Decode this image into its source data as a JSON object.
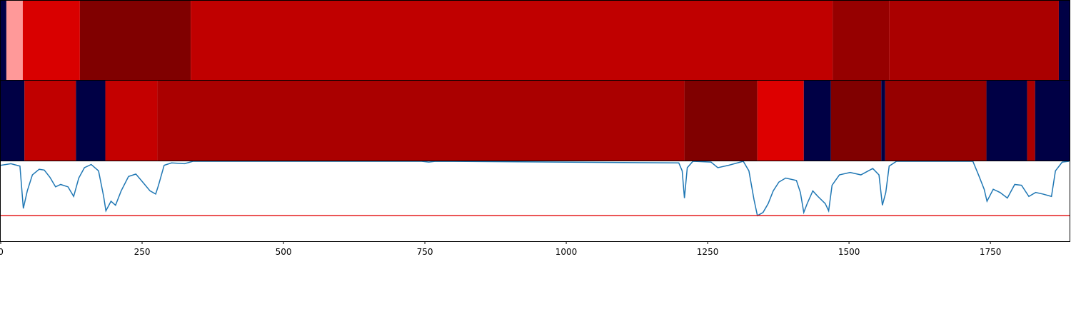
{
  "chart_data": [
    {
      "type": "strip",
      "xlim": [
        0,
        1890
      ],
      "edges": [
        0,
        10,
        39,
        140,
        336,
        1471,
        1571,
        1871,
        1890
      ],
      "colors": [
        "#000045",
        "#ff9999",
        "#d90000",
        "#800000",
        "#c00000",
        "#960000",
        "#aa0000",
        "#000045"
      ]
    },
    {
      "type": "strip",
      "xlim": [
        0,
        1890
      ],
      "edges": [
        0,
        42,
        133,
        185,
        277,
        1209,
        1338,
        1420,
        1468,
        1557,
        1564,
        1743,
        1815,
        1829,
        1890
      ],
      "colors": [
        "#000045",
        "#c00000",
        "#000045",
        "#c40000",
        "#aa0000",
        "#800000",
        "#dd0000",
        "#000045",
        "#800000",
        "#000045",
        "#960000",
        "#000045",
        "#aa0000",
        "#000045"
      ]
    },
    {
      "type": "line",
      "xlim": [
        0,
        1890
      ],
      "ylim": [
        0,
        1
      ],
      "xticks": [
        0,
        250,
        500,
        750,
        1000,
        1250,
        1500,
        1750
      ],
      "hline": 0.32,
      "hline_color": "#e41a1c",
      "series": [
        {
          "color": "#1f77b4",
          "x": [
            0,
            18,
            34,
            40,
            47,
            56,
            68,
            77,
            87,
            97,
            106,
            119,
            129,
            138,
            148,
            160,
            173,
            182,
            186,
            195,
            203,
            213,
            226,
            239,
            251,
            264,
            274,
            279,
            289,
            302,
            325,
            340,
            744,
            757,
            769,
            1199,
            1205,
            1209,
            1214,
            1224,
            1256,
            1268,
            1287,
            1313,
            1323,
            1332,
            1338,
            1348,
            1357,
            1366,
            1376,
            1388,
            1407,
            1414,
            1420,
            1426,
            1436,
            1445,
            1458,
            1464,
            1470,
            1483,
            1502,
            1521,
            1542,
            1553,
            1559,
            1565,
            1571,
            1584,
            1719,
            1729,
            1739,
            1744,
            1755,
            1767,
            1780,
            1793,
            1805,
            1818,
            1830,
            1843,
            1858,
            1865,
            1877,
            1889
          ],
          "values": [
            0.95,
            0.97,
            0.94,
            0.41,
            0.63,
            0.83,
            0.9,
            0.89,
            0.8,
            0.68,
            0.71,
            0.68,
            0.56,
            0.79,
            0.92,
            0.96,
            0.88,
            0.56,
            0.38,
            0.5,
            0.45,
            0.63,
            0.81,
            0.84,
            0.74,
            0.63,
            0.59,
            0.7,
            0.95,
            0.98,
            0.97,
            1.0,
            1.0,
            0.99,
            1.0,
            0.98,
            0.88,
            0.54,
            0.92,
            1.0,
            0.99,
            0.92,
            0.95,
            1.0,
            0.88,
            0.52,
            0.32,
            0.36,
            0.47,
            0.63,
            0.74,
            0.79,
            0.76,
            0.61,
            0.36,
            0.47,
            0.63,
            0.56,
            0.47,
            0.38,
            0.7,
            0.83,
            0.86,
            0.83,
            0.91,
            0.83,
            0.45,
            0.61,
            0.94,
            1.0,
            1.0,
            0.83,
            0.65,
            0.5,
            0.65,
            0.61,
            0.54,
            0.71,
            0.7,
            0.56,
            0.61,
            0.59,
            0.56,
            0.88,
            0.99,
            1.0
          ]
        }
      ]
    }
  ]
}
